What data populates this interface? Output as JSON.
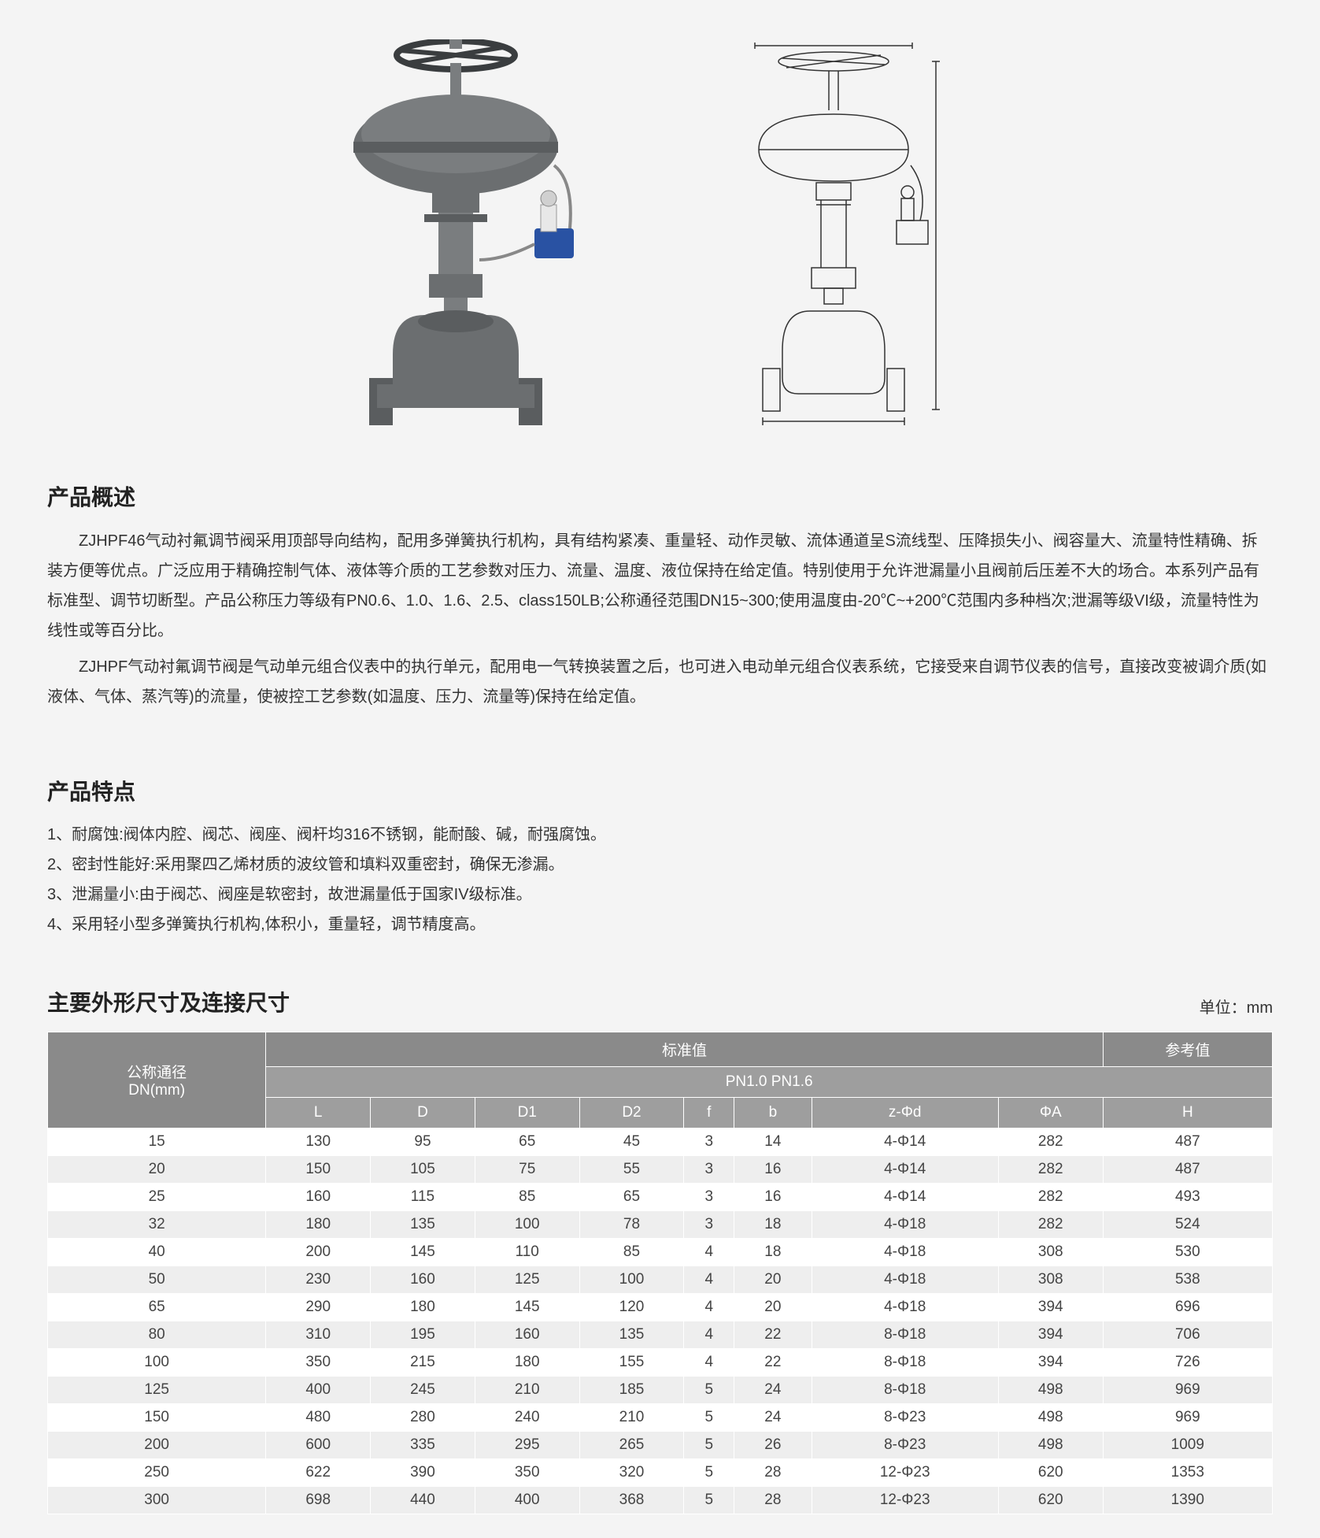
{
  "overview": {
    "title": "产品概述",
    "para1": "ZJHPF46气动衬氟调节阀采用顶部导向结构，配用多弹簧执行机构，具有结构紧凑、重量轻、动作灵敏、流体通道呈S流线型、压降损失小、阀容量大、流量特性精确、拆装方便等优点。广泛应用于精确控制气体、液体等介质的工艺参数对压力、流量、温度、液位保持在给定值。特别使用于允许泄漏量小且阀前后压差不大的场合。本系列产品有标准型、调节切断型。产品公称压力等级有PN0.6、1.0、1.6、2.5、class150LB;公称通径范围DN15~300;使用温度由-20℃~+200℃范围内多种档次;泄漏等级VI级，流量特性为线性或等百分比。",
    "para2": "ZJHPF气动衬氟调节阀是气动单元组合仪表中的执行单元，配用电一气转换装置之后，也可进入电动单元组合仪表系统，它接受来自调节仪表的信号，直接改变被调介质(如液体、气体、蒸汽等)的流量，使被控工艺参数(如温度、压力、流量等)保持在给定值。"
  },
  "features": {
    "title": "产品特点",
    "items": [
      "1、耐腐蚀:阀体内腔、阀芯、阀座、阀杆均316不锈钢，能耐酸、碱，耐强腐蚀。",
      "2、密封性能好:采用聚四乙烯材质的波纹管和填料双重密封，确保无渗漏。",
      "3、泄漏量小:由于阀芯、阀座是软密封，故泄漏量低于国家IV级标准。",
      "4、采用轻小型多弹簧执行机构,体积小，重量轻，调节精度高。"
    ]
  },
  "dimensions": {
    "title": "主要外形尺寸及连接尺寸",
    "unit": "单位：mm",
    "row_label_line1": "公称通径",
    "row_label_line2": "DN(mm)",
    "group_standard": "标准值",
    "group_reference": "参考值",
    "group_pn": "PN1.0 PN1.6",
    "columns": [
      "L",
      "D",
      "D1",
      "D2",
      "f",
      "b",
      "z-Φd",
      "ΦA",
      "H"
    ],
    "rows": [
      [
        "15",
        "130",
        "95",
        "65",
        "45",
        "3",
        "14",
        "4-Φ14",
        "282",
        "487"
      ],
      [
        "20",
        "150",
        "105",
        "75",
        "55",
        "3",
        "16",
        "4-Φ14",
        "282",
        "487"
      ],
      [
        "25",
        "160",
        "115",
        "85",
        "65",
        "3",
        "16",
        "4-Φ14",
        "282",
        "493"
      ],
      [
        "32",
        "180",
        "135",
        "100",
        "78",
        "3",
        "18",
        "4-Φ18",
        "282",
        "524"
      ],
      [
        "40",
        "200",
        "145",
        "110",
        "85",
        "4",
        "18",
        "4-Φ18",
        "308",
        "530"
      ],
      [
        "50",
        "230",
        "160",
        "125",
        "100",
        "4",
        "20",
        "4-Φ18",
        "308",
        "538"
      ],
      [
        "65",
        "290",
        "180",
        "145",
        "120",
        "4",
        "20",
        "4-Φ18",
        "394",
        "696"
      ],
      [
        "80",
        "310",
        "195",
        "160",
        "135",
        "4",
        "22",
        "8-Φ18",
        "394",
        "706"
      ],
      [
        "100",
        "350",
        "215",
        "180",
        "155",
        "4",
        "22",
        "8-Φ18",
        "394",
        "726"
      ],
      [
        "125",
        "400",
        "245",
        "210",
        "185",
        "5",
        "24",
        "8-Φ18",
        "498",
        "969"
      ],
      [
        "150",
        "480",
        "280",
        "240",
        "210",
        "5",
        "24",
        "8-Φ23",
        "498",
        "969"
      ],
      [
        "200",
        "600",
        "335",
        "295",
        "265",
        "5",
        "26",
        "8-Φ23",
        "498",
        "1009"
      ],
      [
        "250",
        "622",
        "390",
        "350",
        "320",
        "5",
        "28",
        "12-Φ23",
        "620",
        "1353"
      ],
      [
        "300",
        "698",
        "440",
        "400",
        "368",
        "5",
        "28",
        "12-Φ23",
        "620",
        "1390"
      ]
    ]
  },
  "colors": {
    "background": "#f4f4f4",
    "text": "#333333",
    "table_header_bg": "#8a8a8a",
    "table_subheader_bg": "#9e9e9e",
    "table_header_text": "#ffffff",
    "table_row_odd": "#ffffff",
    "table_row_even": "#eeeeee",
    "valve_body": "#6b6e70",
    "valve_dark": "#4a4d4f",
    "positioner": "#2952a3"
  }
}
